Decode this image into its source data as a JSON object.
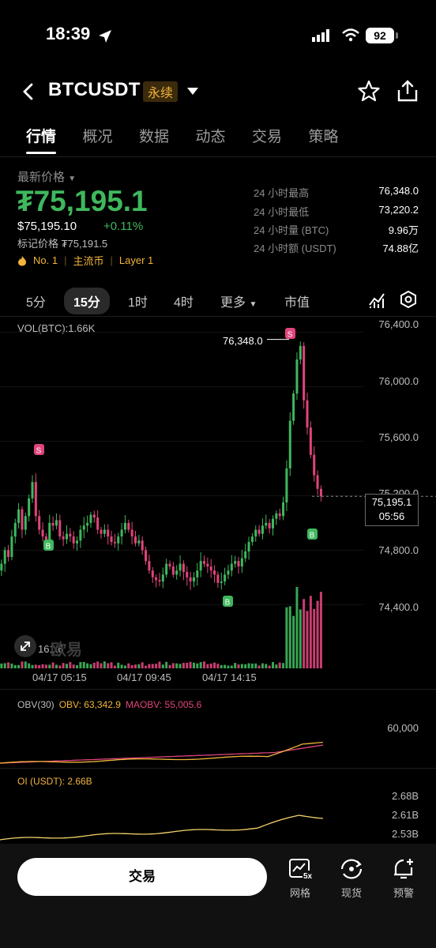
{
  "status_bar": {
    "time": "18:39",
    "battery": "92"
  },
  "header": {
    "symbol": "BTCUSDT",
    "badge": "永续"
  },
  "tabs": [
    {
      "label": "行情",
      "active": true
    },
    {
      "label": "概况"
    },
    {
      "label": "数据"
    },
    {
      "label": "动态"
    },
    {
      "label": "交易"
    },
    {
      "label": "策略"
    }
  ],
  "price": {
    "label": "最新价格",
    "last": "₮75,195.1",
    "usd": "$75,195.10",
    "change": "+0.11%",
    "mark": "标记价格 ₮75,191.5",
    "tags": [
      "No. 1",
      "主流币",
      "Layer 1"
    ]
  },
  "stats": [
    {
      "label": "24 小时最高",
      "value": "76,348.0"
    },
    {
      "label": "24 小时最低",
      "value": "73,220.2"
    },
    {
      "label": "24 小时量 (BTC)",
      "value": "9.96万"
    },
    {
      "label": "24 小时额 (USDT)",
      "value": "74.88亿"
    }
  ],
  "timeframes": {
    "items": [
      "5分",
      "15分",
      "1时",
      "4时"
    ],
    "active": "15分",
    "more": "更多",
    "market_cap": "市值"
  },
  "main_chart": {
    "vol_label": "VOL(BTC):1.66K",
    "y_labels": [
      "76,400.0",
      "76,000.0",
      "75,600.0",
      "75,200.0",
      "74,800.0",
      "74,400.0"
    ],
    "x_labels": [
      "04/17 05:15",
      "04/17 09:45",
      "04/17 14:15"
    ],
    "high_marker": "76,348.0",
    "current_price": "75,195.1",
    "countdown": "05:56",
    "vol_partial": "161.6",
    "watermark": "欧易",
    "sell_mark": "S",
    "buy_mark": "B"
  },
  "obv": {
    "label": "OBV(30)",
    "obv": "OBV: 63,342.9",
    "maobv": "MAOBV: 55,005.6",
    "y_label": "60,000"
  },
  "oi": {
    "label": "OI (USDT): 2.66B",
    "y_labels": [
      "2.68B",
      "2.61B",
      "2.53B"
    ]
  },
  "bottom": {
    "trade": "交易",
    "grid": "网格",
    "spot": "现货",
    "alert": "预警",
    "grid_badge": "5x"
  },
  "colors": {
    "up": "#3fb85d",
    "down": "#e0447c",
    "accent": "#f2b43a"
  },
  "chart_data": {
    "type": "candlestick",
    "interval": "15m",
    "price_range": [
      74100,
      76450
    ],
    "series": [
      {
        "name": "price",
        "close": [
          74650,
          74700,
          74800,
          74750,
          74900,
          75000,
          75100,
          74950,
          75050,
          75180,
          75300,
          75050,
          74950,
          74900,
          74870,
          75000,
          74980,
          75020,
          74900,
          74880,
          74920,
          74900,
          74850,
          74870,
          74950,
          74980,
          75000,
          75060,
          75040,
          74950,
          74920,
          74950,
          74900,
          74860,
          74850,
          74900,
          74950,
          75000,
          74950,
          74900,
          74850,
          74870,
          74800,
          74720,
          74650,
          74600,
          74580,
          74570,
          74620,
          74700,
          74680,
          74620,
          74650,
          74700,
          74640,
          74600,
          74570,
          74600,
          74650,
          74720,
          74700,
          74680,
          74650,
          74620,
          74560,
          74570,
          74620,
          74650,
          74700,
          74720,
          74680,
          74740,
          74790,
          74860,
          74900,
          74950,
          74920,
          74980,
          75000,
          74960,
          75030,
          75070,
          75050,
          75150,
          75400,
          75750,
          75950,
          76200,
          76300,
          75900,
          75700,
          75500,
          75350,
          75250,
          75195
        ]
      }
    ],
    "volume_peak": 1660
  }
}
